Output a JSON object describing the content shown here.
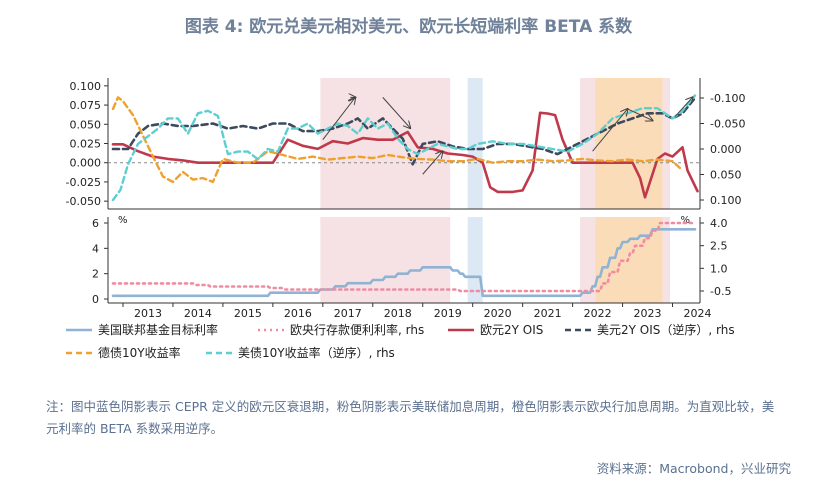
{
  "title": "图表 4:  欧元兑美元相对美元、欧元长短端利率 BETA 系数",
  "note": "注：图中蓝色阴影表示 CEPR 定义的欧元区衰退期，粉色阴影表示美联储加息周期，橙色阴影表示欧央行加息周期。为直观比较，美元利率的 BETA 系数采用逆序。",
  "source": "资料来源：Macrobond，兴业研究",
  "colors": {
    "fed_rate": "#8fb3d3",
    "ecb_deposit": "#f08ca0",
    "eur_2y": "#c0394b",
    "usd_2y": "#3c4a5e",
    "bund_10y": "#f0a02d",
    "ust_10y": "#5ccfd0",
    "shade_blue": "#dce8f4",
    "shade_pink": "#f6e2e4",
    "shade_orange": "#fbdcb8"
  },
  "chart_data": [
    {
      "type": "line",
      "panel": "top",
      "yticks_left": [
        "0.100",
        "0.075",
        "0.050",
        "0.025",
        "0.000",
        "-0.025",
        "-0.050"
      ],
      "yticks_right": [
        "-0.100",
        "-0.050",
        "0.000",
        "0.050",
        "0.100"
      ],
      "ylim_left": [
        -0.05,
        0.1
      ],
      "ylim_right": [
        0.1,
        -0.1
      ],
      "xlim": [
        2012.7,
        2024.55
      ],
      "shading": [
        {
          "kind": "pink",
          "x": [
            2016.95,
            2019.55
          ]
        },
        {
          "kind": "blue",
          "x": [
            2019.9,
            2020.2
          ]
        },
        {
          "kind": "pink",
          "x": [
            2022.15,
            2022.45
          ]
        },
        {
          "kind": "orange",
          "x": [
            2022.45,
            2023.8
          ]
        },
        {
          "kind": "pink",
          "x": [
            2023.8,
            2023.95
          ]
        }
      ],
      "series": [
        {
          "name": "欧元2Y OIS",
          "axis": "left",
          "color_key": "eur_2y",
          "x": [
            2012.8,
            2013.0,
            2013.3,
            2013.6,
            2013.9,
            2014.2,
            2014.5,
            2014.8,
            2015.1,
            2015.4,
            2015.7,
            2016.0,
            2016.3,
            2016.6,
            2016.9,
            2017.2,
            2017.5,
            2017.8,
            2018.1,
            2018.4,
            2018.7,
            2018.9,
            2019.2,
            2019.5,
            2019.8,
            2020.0,
            2020.2,
            2020.35,
            2020.5,
            2020.8,
            2021.0,
            2021.2,
            2021.35,
            2021.5,
            2021.65,
            2021.8,
            2022.0,
            2022.3,
            2022.6,
            2022.9,
            2023.2,
            2023.35,
            2023.45,
            2023.55,
            2023.7,
            2023.85,
            2024.0,
            2024.2,
            2024.3,
            2024.5
          ],
          "values": [
            0.024,
            0.024,
            0.015,
            0.008,
            0.005,
            0.003,
            0.0,
            0.0,
            0.0,
            0.0,
            0.0,
            0.0,
            0.03,
            0.022,
            0.018,
            0.028,
            0.025,
            0.032,
            0.03,
            0.03,
            0.04,
            0.02,
            0.018,
            0.012,
            0.01,
            0.008,
            0.0,
            -0.032,
            -0.038,
            -0.038,
            -0.036,
            -0.01,
            0.065,
            0.064,
            0.062,
            0.03,
            0.0,
            0.0,
            0.0,
            0.0,
            0.0,
            -0.02,
            -0.045,
            -0.025,
            0.005,
            0.012,
            0.008,
            0.02,
            -0.01,
            -0.037
          ]
        },
        {
          "name": "美元2Y OIS（逆序）, rhs",
          "axis": "right",
          "color_key": "usd_2y",
          "x": [
            2012.8,
            2013.1,
            2013.3,
            2013.5,
            2013.8,
            2014.1,
            2014.4,
            2014.8,
            2015.1,
            2015.4,
            2015.7,
            2016.0,
            2016.3,
            2016.6,
            2016.9,
            2017.2,
            2017.5,
            2017.7,
            2017.9,
            2018.2,
            2018.4,
            2018.6,
            2018.8,
            2019.0,
            2019.3,
            2019.6,
            2019.9,
            2020.2,
            2020.5,
            2020.8,
            2021.1,
            2021.4,
            2021.7,
            2022.0,
            2022.3,
            2022.6,
            2022.9,
            2023.2,
            2023.5,
            2023.8,
            2024.0,
            2024.2,
            2024.45
          ],
          "values": [
            0.0,
            0.0,
            -0.03,
            -0.045,
            -0.05,
            -0.045,
            -0.045,
            -0.05,
            -0.04,
            -0.045,
            -0.04,
            -0.05,
            -0.05,
            -0.035,
            -0.035,
            -0.04,
            -0.05,
            -0.06,
            -0.04,
            -0.06,
            -0.04,
            -0.02,
            0.03,
            -0.01,
            -0.015,
            -0.005,
            0.0,
            0.0,
            -0.01,
            -0.01,
            -0.005,
            0.0,
            0.01,
            -0.005,
            -0.02,
            -0.035,
            -0.05,
            -0.06,
            -0.07,
            -0.07,
            -0.06,
            -0.07,
            -0.1
          ]
        },
        {
          "name": "德债10Y收益率",
          "axis": "left",
          "color_key": "bund_10y",
          "x": [
            2012.8,
            2012.9,
            2013.0,
            2013.2,
            2013.4,
            2013.6,
            2013.8,
            2014.0,
            2014.2,
            2014.4,
            2014.6,
            2014.8,
            2015.0,
            2015.3,
            2015.6,
            2015.9,
            2016.2,
            2016.5,
            2016.8,
            2017.1,
            2017.4,
            2017.7,
            2018.0,
            2018.3,
            2018.6,
            2018.9,
            2019.2,
            2019.5,
            2019.8,
            2020.1,
            2020.4,
            2020.7,
            2021.0,
            2021.3,
            2021.6,
            2021.9,
            2022.2,
            2022.5,
            2022.8,
            2023.1,
            2023.4,
            2023.7,
            2024.0,
            2024.2
          ],
          "values": [
            0.07,
            0.085,
            0.08,
            0.062,
            0.035,
            0.008,
            -0.018,
            -0.025,
            -0.012,
            -0.022,
            -0.02,
            -0.025,
            0.005,
            0.0,
            0.0,
            0.015,
            0.01,
            0.005,
            0.008,
            0.004,
            0.006,
            0.008,
            0.006,
            0.01,
            0.007,
            0.005,
            0.004,
            0.002,
            0.002,
            0.005,
            0.0,
            0.002,
            0.002,
            0.004,
            0.002,
            0.003,
            0.005,
            0.003,
            0.002,
            0.004,
            0.002,
            0.004,
            0.002,
            -0.01
          ]
        },
        {
          "name": "美债10Y收益率（逆序）, rhs",
          "axis": "right",
          "color_key": "ust_10y",
          "x": [
            2012.8,
            2012.95,
            2013.1,
            2013.3,
            2013.5,
            2013.7,
            2013.9,
            2014.1,
            2014.3,
            2014.5,
            2014.7,
            2014.9,
            2015.1,
            2015.3,
            2015.5,
            2015.7,
            2015.9,
            2016.1,
            2016.3,
            2016.5,
            2016.7,
            2016.9,
            2017.1,
            2017.3,
            2017.5,
            2017.7,
            2017.9,
            2018.1,
            2018.3,
            2018.5,
            2018.7,
            2018.9,
            2019.1,
            2019.3,
            2019.5,
            2019.7,
            2019.9,
            2020.1,
            2020.4,
            2020.7,
            2021.0,
            2021.3,
            2021.6,
            2021.9,
            2022.2,
            2022.5,
            2022.8,
            2023.1,
            2023.4,
            2023.7,
            2024.0,
            2024.2,
            2024.45
          ],
          "values": [
            0.1,
            0.08,
            0.03,
            -0.01,
            -0.025,
            -0.04,
            -0.06,
            -0.06,
            -0.03,
            -0.07,
            -0.075,
            -0.065,
            0.01,
            0.005,
            0.005,
            0.02,
            0.0,
            0.005,
            -0.04,
            -0.04,
            -0.05,
            -0.03,
            -0.04,
            -0.05,
            -0.045,
            -0.03,
            -0.06,
            -0.04,
            -0.05,
            -0.02,
            0.0,
            0.01,
            0.0,
            -0.01,
            -0.005,
            0.0,
            0.0,
            -0.01,
            -0.015,
            -0.01,
            -0.01,
            -0.005,
            0.0,
            0.005,
            -0.01,
            -0.03,
            -0.06,
            -0.07,
            -0.08,
            -0.08,
            -0.06,
            -0.075,
            -0.105
          ]
        }
      ]
    },
    {
      "type": "line",
      "panel": "bottom",
      "yticks_left": [
        "6",
        "4",
        "2",
        "0"
      ],
      "yticks_right": [
        "4.0",
        "2.5",
        "1.0",
        "-0.5"
      ],
      "ylim_left": [
        0,
        6.5
      ],
      "ylim_right": [
        -0.8,
        4.2
      ],
      "unit_left": "%",
      "unit_right": "%",
      "xticks": [
        "2013",
        "2014",
        "2015",
        "2016",
        "2017",
        "2018",
        "2019",
        "2020",
        "2021",
        "2022",
        "2023",
        "2024"
      ],
      "series": [
        {
          "name": "美国联邦基金目标利率",
          "axis": "left",
          "color_key": "fed_rate",
          "x": [
            2012.8,
            2015.9,
            2015.95,
            2016.9,
            2016.95,
            2017.2,
            2017.25,
            2017.45,
            2017.5,
            2017.95,
            2018.0,
            2018.2,
            2018.25,
            2018.45,
            2018.5,
            2018.7,
            2018.75,
            2018.95,
            2019.0,
            2019.55,
            2019.6,
            2019.7,
            2019.75,
            2019.8,
            2019.85,
            2020.15,
            2020.2,
            2022.15,
            2022.2,
            2022.35,
            2022.4,
            2022.45,
            2022.5,
            2022.55,
            2022.6,
            2022.7,
            2022.75,
            2022.85,
            2022.9,
            2022.95,
            2023.0,
            2023.1,
            2023.15,
            2023.3,
            2023.35,
            2023.55,
            2023.6,
            2024.45
          ],
          "values": [
            0.25,
            0.25,
            0.5,
            0.5,
            0.75,
            0.75,
            1.0,
            1.0,
            1.25,
            1.25,
            1.5,
            1.5,
            1.75,
            1.75,
            2.0,
            2.0,
            2.25,
            2.25,
            2.5,
            2.5,
            2.25,
            2.25,
            2.0,
            2.0,
            1.75,
            1.75,
            0.25,
            0.25,
            0.5,
            0.5,
            1.0,
            1.0,
            1.75,
            1.75,
            2.5,
            2.5,
            3.25,
            3.25,
            4.0,
            4.0,
            4.5,
            4.5,
            4.75,
            4.75,
            5.0,
            5.0,
            5.5,
            5.5
          ]
        },
        {
          "name": "欧央行存款便利利率, rhs",
          "axis": "right",
          "color_key": "ecb_deposit",
          "x": [
            2012.8,
            2014.4,
            2014.45,
            2014.7,
            2014.75,
            2015.9,
            2015.95,
            2016.2,
            2016.25,
            2019.7,
            2019.75,
            2022.55,
            2022.6,
            2022.7,
            2022.75,
            2022.9,
            2022.95,
            2023.1,
            2023.15,
            2023.2,
            2023.25,
            2023.4,
            2023.45,
            2023.55,
            2023.6,
            2023.7,
            2023.75,
            2024.45
          ],
          "values": [
            0.0,
            0.0,
            -0.1,
            -0.1,
            -0.2,
            -0.2,
            -0.3,
            -0.3,
            -0.4,
            -0.4,
            -0.5,
            -0.5,
            0.0,
            0.0,
            0.75,
            0.75,
            1.5,
            1.5,
            2.0,
            2.0,
            2.5,
            2.5,
            3.0,
            3.0,
            3.5,
            3.5,
            4.0,
            4.0
          ]
        }
      ]
    }
  ],
  "legend": [
    {
      "label": "美国联邦基金目标利率",
      "style": "solid",
      "color_key": "fed_rate"
    },
    {
      "label": "欧央行存款便利利率, rhs",
      "style": "dotted",
      "color_key": "ecb_deposit"
    },
    {
      "label": "欧元2Y OIS",
      "style": "solid",
      "color_key": "eur_2y"
    },
    {
      "label": "美元2Y OIS（逆序）, rhs",
      "style": "dashed",
      "color_key": "usd_2y"
    },
    {
      "label": "德债10Y收益率",
      "style": "dashed",
      "color_key": "bund_10y"
    },
    {
      "label": "美债10Y收益率（逆序）, rhs",
      "style": "dashed",
      "color_key": "ust_10y"
    }
  ]
}
